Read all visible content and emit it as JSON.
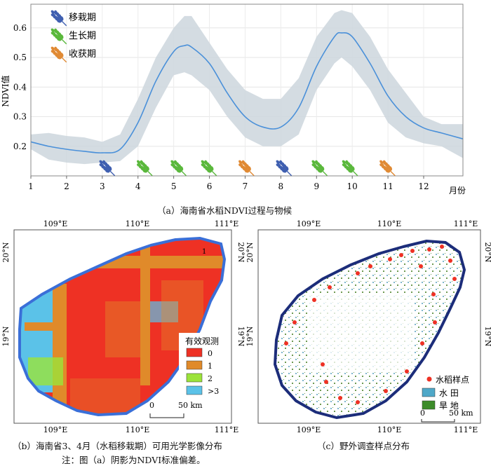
{
  "chart_data": [
    {
      "type": "line",
      "ylabel": "NDVI值",
      "xlabel": "月份",
      "x_ticks": [
        "1",
        "2",
        "3",
        "4",
        "5",
        "6",
        "7",
        "8",
        "9",
        "10",
        "11",
        "12"
      ],
      "y_ticks": [
        "0.2",
        "0.3",
        "0.4",
        "0.5",
        "0.6"
      ],
      "xlim": [
        1,
        13.1
      ],
      "ylim": [
        0.1,
        0.68
      ],
      "grid": true,
      "legend_position": "top-left",
      "legend": [
        {
          "label": "移栽期",
          "color": "#3f5fb0"
        },
        {
          "label": "生长期",
          "color": "#5ab83c"
        },
        {
          "label": "收获期",
          "color": "#e08a34"
        }
      ],
      "series": [
        {
          "x": [
            1,
            1.5,
            2,
            2.5,
            3,
            3.5,
            4,
            4.5,
            5,
            5.3,
            5.5,
            6,
            6.5,
            7,
            7.5,
            8,
            8.5,
            9,
            9.5,
            9.7,
            10,
            10.5,
            11,
            11.5,
            12,
            12.5,
            13.1
          ],
          "y": [
            0.215,
            0.2,
            0.19,
            0.183,
            0.178,
            0.19,
            0.28,
            0.42,
            0.52,
            0.54,
            0.535,
            0.48,
            0.38,
            0.3,
            0.265,
            0.265,
            0.33,
            0.47,
            0.57,
            0.583,
            0.57,
            0.48,
            0.37,
            0.3,
            0.262,
            0.245,
            0.225
          ],
          "upper": [
            0.24,
            0.245,
            0.235,
            0.23,
            0.215,
            0.24,
            0.36,
            0.5,
            0.6,
            0.64,
            0.64,
            0.55,
            0.46,
            0.39,
            0.36,
            0.36,
            0.43,
            0.57,
            0.65,
            0.66,
            0.65,
            0.57,
            0.46,
            0.38,
            0.3,
            0.275,
            0.275
          ],
          "lower": [
            0.19,
            0.155,
            0.145,
            0.14,
            0.145,
            0.15,
            0.2,
            0.33,
            0.44,
            0.45,
            0.44,
            0.39,
            0.3,
            0.23,
            0.2,
            0.2,
            0.24,
            0.39,
            0.48,
            0.5,
            0.47,
            0.39,
            0.28,
            0.23,
            0.21,
            0.2,
            0.16
          ]
        }
      ],
      "phenology_markers": [
        {
          "x": 3.1,
          "stage": "移栽期"
        },
        {
          "x": 4.15,
          "stage": "生长期"
        },
        {
          "x": 5.1,
          "stage": "生长期"
        },
        {
          "x": 5.95,
          "stage": "生长期"
        },
        {
          "x": 7.0,
          "stage": "收获期"
        },
        {
          "x": 8.05,
          "stage": "移栽期"
        },
        {
          "x": 9.05,
          "stage": "生长期"
        },
        {
          "x": 9.9,
          "stage": "生长期"
        },
        {
          "x": 10.95,
          "stage": "收获期"
        }
      ]
    }
  ],
  "maps": {
    "lon_ticks": [
      "109°E",
      "110°E",
      "111°E"
    ],
    "lat_ticks": [
      "20°N",
      "19°N"
    ],
    "b": {
      "legend_title": "有效观测",
      "legend_items": [
        {
          "label": "0",
          "color": "#ee3124"
        },
        {
          "label": "1",
          "color": "#e08a2a"
        },
        {
          "label": "2",
          "color": "#9be33a"
        },
        {
          "label": ">3",
          "color": "#5bc2e8"
        }
      ],
      "scale_zero": "0",
      "scale_label": "50 km",
      "corner_label": "1"
    },
    "c": {
      "legend_items": [
        {
          "label": "水稻样点",
          "color": "#ee3124"
        },
        {
          "label": "水 田",
          "color": "#4fa8c8"
        },
        {
          "label": "旱 地",
          "color": "#3d8c2a"
        }
      ],
      "scale_zero": "0",
      "scale_label": "50 km"
    }
  },
  "captions": {
    "a": "（a）海南省水稻NDVI过程与物候",
    "b": "（b）海南省3、4月（水稻移栽期）可用光学影像分布",
    "c": "（c）野外调查样点分布",
    "note": "注：图（a）阴影为NDVI标准偏差。"
  }
}
